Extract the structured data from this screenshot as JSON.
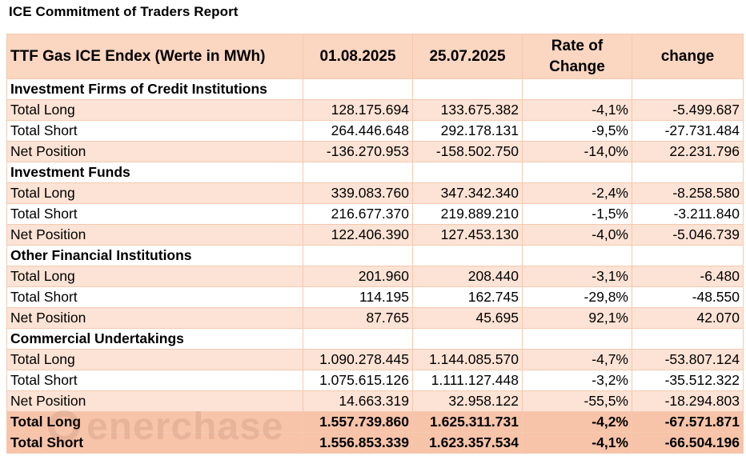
{
  "title": "ICE Commitment of Traders Report",
  "header": {
    "label": "TTF Gas ICE Endex (Werte in MWh)",
    "col1": "01.08.2025",
    "col2": "25.07.2025",
    "col3_line1": "Rate of",
    "col3_line2": "Change",
    "col4": "change"
  },
  "sections": [
    {
      "name": "Investment Firms of Credit Institutions",
      "rows": [
        {
          "label": "Total Long",
          "v1": "128.175.694",
          "v2": "133.675.382",
          "rate": "-4,1%",
          "change": "-5.499.687"
        },
        {
          "label": "Total Short",
          "v1": "264.446.648",
          "v2": "292.178.131",
          "rate": "-9,5%",
          "change": "-27.731.484"
        },
        {
          "label": "Net Position",
          "v1": "-136.270.953",
          "v2": "-158.502.750",
          "rate": "-14,0%",
          "change": "22.231.796"
        }
      ]
    },
    {
      "name": "Investment Funds",
      "rows": [
        {
          "label": "Total Long",
          "v1": "339.083.760",
          "v2": "347.342.340",
          "rate": "-2,4%",
          "change": "-8.258.580"
        },
        {
          "label": "Total Short",
          "v1": "216.677.370",
          "v2": "219.889.210",
          "rate": "-1,5%",
          "change": "-3.211.840"
        },
        {
          "label": "Net Position",
          "v1": "122.406.390",
          "v2": "127.453.130",
          "rate": "-4,0%",
          "change": "-5.046.739"
        }
      ]
    },
    {
      "name": "Other Financial Institutions",
      "rows": [
        {
          "label": "Total Long",
          "v1": "201.960",
          "v2": "208.440",
          "rate": "-3,1%",
          "change": "-6.480"
        },
        {
          "label": "Total Short",
          "v1": "114.195",
          "v2": "162.745",
          "rate": "-29,8%",
          "change": "-48.550"
        },
        {
          "label": "Net Position",
          "v1": "87.765",
          "v2": "45.695",
          "rate": "92,1%",
          "change": "42.070"
        }
      ]
    },
    {
      "name": "Commercial Undertakings",
      "rows": [
        {
          "label": "Total Long",
          "v1": "1.090.278.445",
          "v2": "1.144.085.570",
          "rate": "-4,7%",
          "change": "-53.807.124"
        },
        {
          "label": "Total Short",
          "v1": "1.075.615.126",
          "v2": "1.111.127.448",
          "rate": "-3,2%",
          "change": "-35.512.322"
        },
        {
          "label": "Net Position",
          "v1": "14.663.319",
          "v2": "32.958.122",
          "rate": "-55,5%",
          "change": "-18.294.803"
        }
      ]
    }
  ],
  "totals": [
    {
      "label": "Total Long",
      "v1": "1.557.739.860",
      "v2": "1.625.311.731",
      "rate": "-4,2%",
      "change": "-67.571.871"
    },
    {
      "label": "Total Short",
      "v1": "1.556.853.339",
      "v2": "1.623.357.534",
      "rate": "-4,1%",
      "change": "-66.504.196"
    }
  ],
  "watermark": "enerchase",
  "colors": {
    "header_bg": "#fbd6c1",
    "shaded_row_bg": "#fde3d5",
    "total_row_bg": "#f7c4a9",
    "border": "#f5c9b0"
  }
}
